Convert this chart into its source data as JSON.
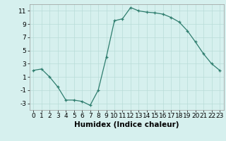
{
  "x": [
    0,
    1,
    2,
    3,
    4,
    5,
    6,
    7,
    8,
    9,
    10,
    11,
    12,
    13,
    14,
    15,
    16,
    17,
    18,
    19,
    20,
    21,
    22,
    23
  ],
  "y": [
    2.0,
    2.2,
    1.0,
    -0.5,
    -2.5,
    -2.5,
    -2.7,
    -3.3,
    -1.0,
    4.0,
    9.5,
    9.8,
    11.5,
    11.0,
    10.8,
    10.7,
    10.5,
    10.0,
    9.3,
    8.0,
    6.3,
    4.5,
    3.0,
    2.0
  ],
  "xlabel": "Humidex (Indice chaleur)",
  "ylim": [
    -4,
    12
  ],
  "xlim": [
    -0.5,
    23.5
  ],
  "yticks": [
    -3,
    -1,
    1,
    3,
    5,
    7,
    9,
    11
  ],
  "xticks": [
    0,
    1,
    2,
    3,
    4,
    5,
    6,
    7,
    8,
    9,
    10,
    11,
    12,
    13,
    14,
    15,
    16,
    17,
    18,
    19,
    20,
    21,
    22,
    23
  ],
  "line_color": "#2e7d6e",
  "marker": "+",
  "bg_color": "#d6f0ee",
  "grid_color": "#b8dcd8",
  "tick_label_fontsize": 6.5,
  "xlabel_fontsize": 7.5
}
